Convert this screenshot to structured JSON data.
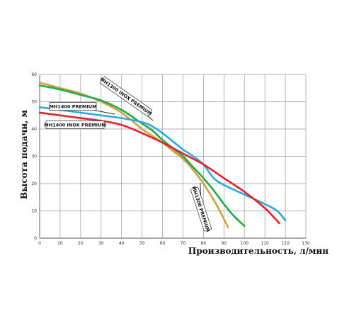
{
  "chart_data": {
    "type": "line",
    "xlabel": "Производительность, л/мин",
    "ylabel": "Высота подачи, м",
    "xlim": [
      0,
      130
    ],
    "ylim": [
      0,
      60
    ],
    "xticks": [
      "0",
      "10",
      "20",
      "30",
      "40",
      "50",
      "60",
      "70",
      "80",
      "90",
      "100",
      "110",
      "120",
      "130"
    ],
    "yticks": [
      "0",
      "10",
      "20",
      "30",
      "40",
      "50",
      "60"
    ],
    "grid": true,
    "series": [
      {
        "name": "MH1400 INOX PREMIUM",
        "color": "#e8202a",
        "x": [
          0,
          10,
          20,
          30,
          40,
          50,
          60,
          70,
          80,
          90,
          100,
          110,
          117
        ],
        "y": [
          46,
          45,
          44,
          43,
          41.5,
          38.5,
          35,
          31,
          27,
          22,
          17,
          11,
          5.5
        ]
      },
      {
        "name": "MH1400 PREMIUM",
        "color": "#29abe2",
        "x": [
          0,
          10,
          20,
          30,
          40,
          50,
          55,
          60,
          65,
          70,
          75,
          80,
          85,
          90,
          100,
          110,
          116,
          120
        ],
        "y": [
          48,
          47,
          46,
          45,
          44,
          42.5,
          41,
          38.5,
          35.5,
          32.5,
          30,
          27,
          22,
          19.5,
          16,
          12.5,
          10,
          6.5
        ]
      },
      {
        "name": "MH1300 INOX PREMIUM",
        "color": "#22a94f",
        "x": [
          0,
          10,
          20,
          30,
          40,
          50,
          55,
          60,
          65,
          70,
          75,
          80,
          85,
          90,
          95,
          100
        ],
        "y": [
          56,
          54.5,
          52.5,
          50.5,
          47,
          42,
          39.5,
          36,
          33,
          30,
          26,
          22,
          17.5,
          12.5,
          8,
          4.5
        ]
      },
      {
        "name": "MH1300 PREMIUM",
        "color": "#d4a03a",
        "x": [
          0,
          10,
          20,
          30,
          40,
          50,
          55,
          60,
          65,
          70,
          75,
          80,
          85,
          88,
          90,
          92
        ],
        "y": [
          57,
          55,
          53,
          50,
          46,
          40,
          37.5,
          35,
          32,
          29,
          25,
          20,
          14,
          10,
          7,
          4
        ]
      }
    ],
    "annotations": [
      {
        "text": "MH1300 INOX PREMIUM",
        "series": 2
      },
      {
        "text": "MH1400 PREMIUM",
        "series": 1
      },
      {
        "text": "MH1400 INOX PREMIUM",
        "series": 0
      },
      {
        "text": "MH1300 PREMIUM",
        "series": 3
      }
    ]
  }
}
